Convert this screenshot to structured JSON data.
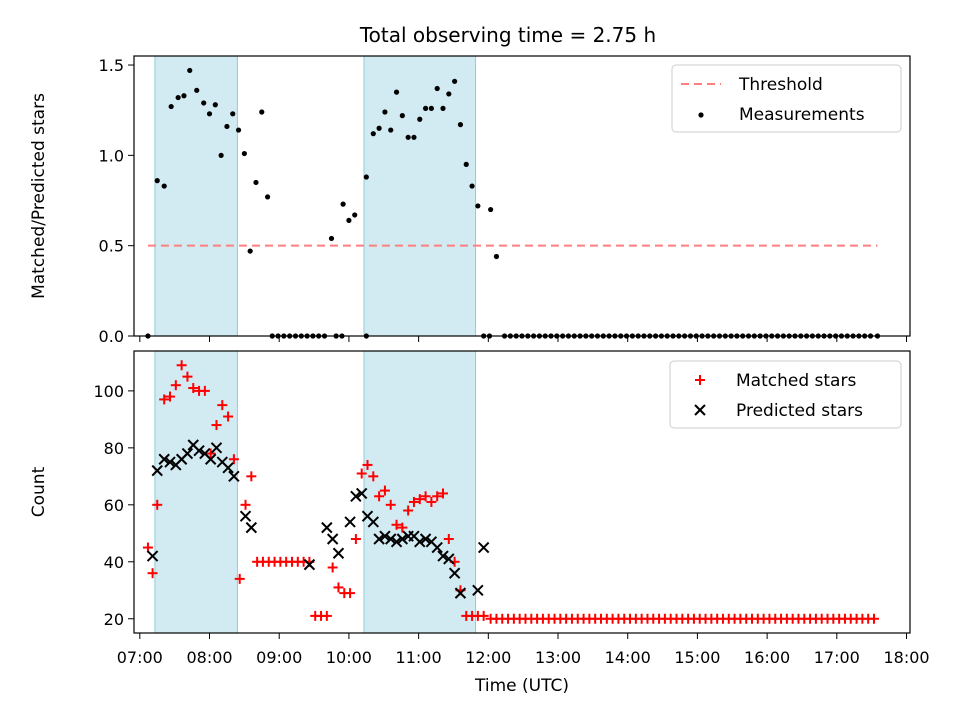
{
  "figure": {
    "title": "Total observing time = 2.75 h"
  },
  "chart_data": [
    {
      "type": "scatter",
      "ylabel": "Matched/Predicted stars",
      "ylim": [
        0,
        1.55
      ],
      "xlim": [
        "06:55",
        "18:03"
      ],
      "yticks": [
        0.0,
        0.5,
        1.0,
        1.5
      ],
      "ytick_labels": [
        "0.0",
        "0.5",
        "1.0",
        "1.5"
      ],
      "legend_location": "top-right",
      "colors": {
        "threshold": "#ff7f7f",
        "measurements": "#000000",
        "shade": "#add8e6"
      },
      "shaded_intervals": [
        [
          "07:13",
          "08:24"
        ],
        [
          "10:13",
          "11:49"
        ]
      ],
      "threshold": {
        "name": "Threshold",
        "y": 0.5,
        "x_range": [
          "07:07",
          "17:35"
        ]
      },
      "series": [
        {
          "name": "Measurements",
          "x": [
            "07:07",
            "07:13",
            "07:18",
            "07:24",
            "07:30",
            "07:36",
            "07:42",
            "07:48",
            "07:54",
            "08:00",
            "08:06",
            "08:12",
            "08:18",
            "08:24",
            "08:30",
            "08:36",
            "08:42",
            "08:48",
            "08:54",
            "09:00",
            "09:06",
            "09:12",
            "09:18",
            "09:24",
            "09:30",
            "09:36",
            "09:42",
            "09:48",
            "09:54",
            "10:00",
            "10:06",
            "10:12",
            "10:18",
            "10:24",
            "10:30",
            "10:36",
            "10:42",
            "10:48",
            "10:54",
            "11:00",
            "11:06",
            "11:12",
            "11:18",
            "11:24",
            "11:30",
            "11:36",
            "11:42",
            "11:48",
            "11:54",
            "12:00",
            "12:06",
            "12:12",
            "12:18",
            "12:24",
            "12:30",
            "12:36",
            "12:42",
            "12:48",
            "12:54",
            "13:00",
            "13:06",
            "13:12",
            "13:18",
            "13:24",
            "13:30",
            "13:36",
            "13:42",
            "13:48",
            "13:54",
            "14:00",
            "14:06",
            "14:12",
            "14:18",
            "14:24",
            "14:30",
            "14:36",
            "14:42",
            "14:48",
            "14:54",
            "15:00",
            "15:06",
            "15:12",
            "15:18",
            "15:24",
            "15:30",
            "15:36",
            "15:42",
            "15:48",
            "15:54",
            "16:00",
            "16:06",
            "16:12",
            "16:18",
            "16:24",
            "16:30",
            "16:36",
            "16:42",
            "16:48",
            "16:54",
            "17:00",
            "17:06",
            "17:12",
            "17:18",
            "17:24",
            "17:30",
            "17:35"
          ],
          "extra_points": [
            {
              "x": "07:15",
              "y": 0.86
            },
            {
              "x": "07:21",
              "y": 0.83
            },
            {
              "x": "07:27",
              "y": 1.27
            },
            {
              "x": "07:33",
              "y": 1.32
            },
            {
              "x": "07:38",
              "y": 1.33
            },
            {
              "x": "07:43",
              "y": 1.47
            },
            {
              "x": "07:49",
              "y": 1.36
            },
            {
              "x": "07:55",
              "y": 1.29
            },
            {
              "x": "08:00",
              "y": 1.23
            },
            {
              "x": "08:05",
              "y": 1.28
            },
            {
              "x": "08:10",
              "y": 1.0
            },
            {
              "x": "08:15",
              "y": 1.16
            },
            {
              "x": "08:20",
              "y": 1.23
            },
            {
              "x": "08:25",
              "y": 1.14
            },
            {
              "x": "08:30",
              "y": 1.01
            },
            {
              "x": "08:35",
              "y": 0.47
            },
            {
              "x": "08:40",
              "y": 0.85
            },
            {
              "x": "08:45",
              "y": 1.24
            },
            {
              "x": "08:50",
              "y": 0.77
            },
            {
              "x": "09:45",
              "y": 0.54
            },
            {
              "x": "09:55",
              "y": 0.73
            },
            {
              "x": "10:00",
              "y": 0.64
            },
            {
              "x": "10:05",
              "y": 0.67
            },
            {
              "x": "10:15",
              "y": 0.88
            },
            {
              "x": "10:21",
              "y": 1.12
            },
            {
              "x": "10:26",
              "y": 1.15
            },
            {
              "x": "10:31",
              "y": 1.24
            },
            {
              "x": "10:36",
              "y": 1.14
            },
            {
              "x": "10:41",
              "y": 1.35
            },
            {
              "x": "10:46",
              "y": 1.22
            },
            {
              "x": "10:51",
              "y": 1.1
            },
            {
              "x": "10:56",
              "y": 1.1
            },
            {
              "x": "11:01",
              "y": 1.2
            },
            {
              "x": "11:06",
              "y": 1.26
            },
            {
              "x": "11:11",
              "y": 1.26
            },
            {
              "x": "11:16",
              "y": 1.37
            },
            {
              "x": "11:21",
              "y": 1.26
            },
            {
              "x": "11:26",
              "y": 1.34
            },
            {
              "x": "11:31",
              "y": 1.41
            },
            {
              "x": "11:36",
              "y": 1.17
            },
            {
              "x": "11:41",
              "y": 0.95
            },
            {
              "x": "11:46",
              "y": 0.83
            },
            {
              "x": "11:51",
              "y": 0.72
            },
            {
              "x": "12:02",
              "y": 0.7
            },
            {
              "x": "12:07",
              "y": 0.44
            }
          ],
          "zero_points": [
            "07:07",
            "08:54",
            "08:59",
            "09:04",
            "09:09",
            "09:14",
            "09:19",
            "09:24",
            "09:29",
            "09:34",
            "09:39",
            "09:49",
            "09:54",
            "10:15",
            "11:56",
            "12:01",
            "12:14",
            "12:19",
            "12:24",
            "12:29",
            "12:34",
            "12:39",
            "12:44",
            "12:49",
            "12:54",
            "12:59",
            "13:04",
            "13:09",
            "13:14",
            "13:19",
            "13:24",
            "13:29",
            "13:34",
            "13:39",
            "13:44",
            "13:49",
            "13:54",
            "13:59",
            "14:04",
            "14:09",
            "14:14",
            "14:19",
            "14:24",
            "14:29",
            "14:34",
            "14:39",
            "14:44",
            "14:49",
            "14:54",
            "14:59",
            "15:04",
            "15:09",
            "15:14",
            "15:19",
            "15:24",
            "15:29",
            "15:34",
            "15:39",
            "15:44",
            "15:49",
            "15:54",
            "15:59",
            "16:04",
            "16:09",
            "16:14",
            "16:19",
            "16:24",
            "16:29",
            "16:34",
            "16:39",
            "16:44",
            "16:49",
            "16:54",
            "16:59",
            "17:04",
            "17:09",
            "17:14",
            "17:19",
            "17:24",
            "17:29",
            "17:35"
          ]
        }
      ]
    },
    {
      "type": "scatter",
      "ylabel": "Count",
      "xlabel": "Time (UTC)",
      "ylim": [
        15,
        114
      ],
      "xlim": [
        "06:55",
        "18:03"
      ],
      "yticks": [
        20,
        40,
        60,
        80,
        100
      ],
      "ytick_labels": [
        "20",
        "40",
        "60",
        "80",
        "100"
      ],
      "xticks": [
        "07:00",
        "08:00",
        "09:00",
        "10:00",
        "11:00",
        "12:00",
        "13:00",
        "14:00",
        "15:00",
        "16:00",
        "17:00",
        "18:00"
      ],
      "legend_location": "top-right",
      "colors": {
        "matched": "#ff0000",
        "predicted": "#000000",
        "shade": "#add8e6"
      },
      "shaded_intervals": [
        [
          "07:13",
          "08:24"
        ],
        [
          "10:13",
          "11:49"
        ]
      ],
      "series": [
        {
          "name": "Matched stars",
          "marker": "+",
          "points": [
            {
              "x": "07:07",
              "y": 45
            },
            {
              "x": "07:11",
              "y": 36
            },
            {
              "x": "07:15",
              "y": 60
            },
            {
              "x": "07:21",
              "y": 97
            },
            {
              "x": "07:26",
              "y": 98
            },
            {
              "x": "07:31",
              "y": 102
            },
            {
              "x": "07:36",
              "y": 109
            },
            {
              "x": "07:41",
              "y": 105
            },
            {
              "x": "07:46",
              "y": 101
            },
            {
              "x": "07:51",
              "y": 100
            },
            {
              "x": "07:56",
              "y": 100
            },
            {
              "x": "08:01",
              "y": 78
            },
            {
              "x": "08:06",
              "y": 88
            },
            {
              "x": "08:11",
              "y": 95
            },
            {
              "x": "08:16",
              "y": 91
            },
            {
              "x": "08:21",
              "y": 76
            },
            {
              "x": "08:26",
              "y": 34
            },
            {
              "x": "08:31",
              "y": 60
            },
            {
              "x": "08:36",
              "y": 70
            },
            {
              "x": "08:41",
              "y": 40
            },
            {
              "x": "08:46",
              "y": 40
            },
            {
              "x": "08:51",
              "y": 40
            },
            {
              "x": "08:56",
              "y": 40
            },
            {
              "x": "09:01",
              "y": 40
            },
            {
              "x": "09:06",
              "y": 40
            },
            {
              "x": "09:11",
              "y": 40
            },
            {
              "x": "09:16",
              "y": 40
            },
            {
              "x": "09:21",
              "y": 40
            },
            {
              "x": "09:26",
              "y": 40
            },
            {
              "x": "09:31",
              "y": 21
            },
            {
              "x": "09:36",
              "y": 21
            },
            {
              "x": "09:41",
              "y": 21
            },
            {
              "x": "09:46",
              "y": 38
            },
            {
              "x": "09:51",
              "y": 31
            },
            {
              "x": "09:56",
              "y": 29
            },
            {
              "x": "10:01",
              "y": 29
            },
            {
              "x": "10:06",
              "y": 48
            },
            {
              "x": "10:11",
              "y": 71
            },
            {
              "x": "10:16",
              "y": 74
            },
            {
              "x": "10:21",
              "y": 70
            },
            {
              "x": "10:26",
              "y": 63
            },
            {
              "x": "10:31",
              "y": 65
            },
            {
              "x": "10:36",
              "y": 60
            },
            {
              "x": "10:41",
              "y": 53
            },
            {
              "x": "10:46",
              "y": 52
            },
            {
              "x": "10:51",
              "y": 58
            },
            {
              "x": "10:56",
              "y": 61
            },
            {
              "x": "11:01",
              "y": 62
            },
            {
              "x": "11:06",
              "y": 63
            },
            {
              "x": "11:11",
              "y": 61
            },
            {
              "x": "11:16",
              "y": 63
            },
            {
              "x": "11:21",
              "y": 64
            },
            {
              "x": "11:26",
              "y": 48
            },
            {
              "x": "11:31",
              "y": 40
            },
            {
              "x": "11:36",
              "y": 30
            },
            {
              "x": "11:41",
              "y": 21
            },
            {
              "x": "11:46",
              "y": 21
            },
            {
              "x": "11:51",
              "y": 21
            },
            {
              "x": "11:56",
              "y": 21
            }
          ],
          "baseline": {
            "y": 20,
            "x_from": "12:02",
            "x_to": "17:35",
            "step_minutes": 5
          }
        },
        {
          "name": "Predicted stars",
          "marker": "x",
          "points": [
            {
              "x": "07:11",
              "y": 42
            },
            {
              "x": "07:15",
              "y": 72
            },
            {
              "x": "07:21",
              "y": 76
            },
            {
              "x": "07:26",
              "y": 75
            },
            {
              "x": "07:31",
              "y": 74
            },
            {
              "x": "07:36",
              "y": 76
            },
            {
              "x": "07:41",
              "y": 78
            },
            {
              "x": "07:46",
              "y": 81
            },
            {
              "x": "07:51",
              "y": 79
            },
            {
              "x": "07:56",
              "y": 78
            },
            {
              "x": "08:01",
              "y": 76
            },
            {
              "x": "08:06",
              "y": 80
            },
            {
              "x": "08:11",
              "y": 75
            },
            {
              "x": "08:16",
              "y": 73
            },
            {
              "x": "08:21",
              "y": 70
            },
            {
              "x": "08:31",
              "y": 56
            },
            {
              "x": "08:36",
              "y": 52
            },
            {
              "x": "09:26",
              "y": 39
            },
            {
              "x": "09:41",
              "y": 52
            },
            {
              "x": "09:46",
              "y": 48
            },
            {
              "x": "09:51",
              "y": 43
            },
            {
              "x": "10:01",
              "y": 54
            },
            {
              "x": "10:06",
              "y": 63
            },
            {
              "x": "10:11",
              "y": 64
            },
            {
              "x": "10:16",
              "y": 56
            },
            {
              "x": "10:21",
              "y": 54
            },
            {
              "x": "10:26",
              "y": 48
            },
            {
              "x": "10:31",
              "y": 49
            },
            {
              "x": "10:36",
              "y": 48
            },
            {
              "x": "10:41",
              "y": 47
            },
            {
              "x": "10:46",
              "y": 48
            },
            {
              "x": "10:51",
              "y": 49
            },
            {
              "x": "10:56",
              "y": 49
            },
            {
              "x": "11:01",
              "y": 47
            },
            {
              "x": "11:06",
              "y": 48
            },
            {
              "x": "11:11",
              "y": 47
            },
            {
              "x": "11:16",
              "y": 45
            },
            {
              "x": "11:21",
              "y": 42
            },
            {
              "x": "11:26",
              "y": 41
            },
            {
              "x": "11:31",
              "y": 36
            },
            {
              "x": "11:36",
              "y": 29
            },
            {
              "x": "11:51",
              "y": 30
            },
            {
              "x": "11:56",
              "y": 45
            }
          ]
        }
      ]
    }
  ]
}
